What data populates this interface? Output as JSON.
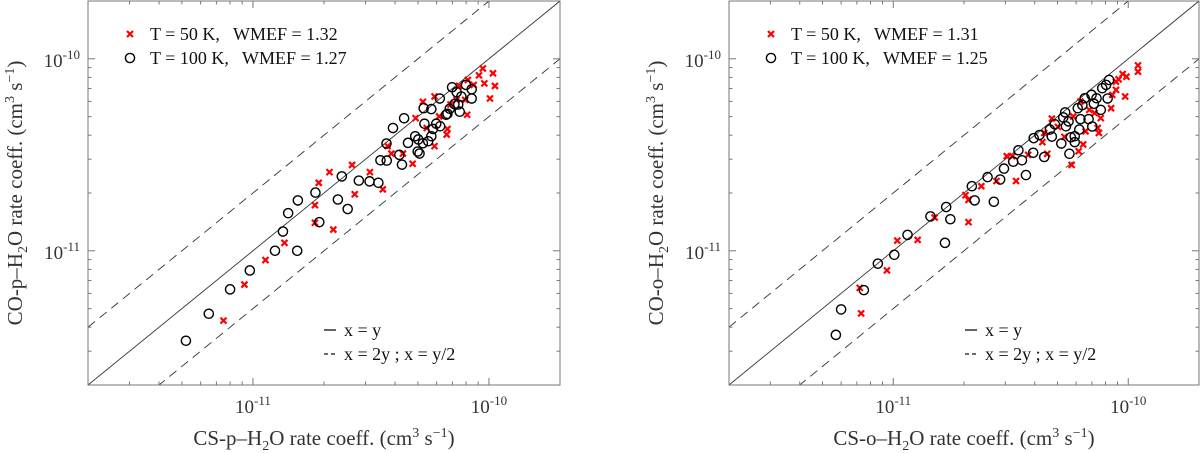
{
  "chart_data": [
    {
      "type": "scatter",
      "xscale": "log",
      "yscale": "log",
      "xlim": [
        2e-12,
        2e-10
      ],
      "ylim": [
        2e-12,
        2e-10
      ],
      "grid": false,
      "xlabel_parts": [
        "CS-p–H",
        "2",
        "O rate coeff.  (cm",
        "3",
        " s",
        "−1",
        ")"
      ],
      "ylabel_parts": [
        "CO-p–H",
        "2",
        "O rate coeff.  (cm",
        "3",
        " s",
        "−1",
        ")"
      ],
      "xticks": [
        {
          "value": 1e-11,
          "base": "10",
          "exp": "-11"
        },
        {
          "value": 1e-10,
          "base": "10",
          "exp": "-10"
        }
      ],
      "yticks": [
        {
          "value": 1e-11,
          "base": "10",
          "exp": "-11"
        },
        {
          "value": 1e-10,
          "base": "10",
          "exp": "-10"
        }
      ],
      "legend_position": "top-left",
      "series": [
        {
          "name": "T = 50 K,   WMEF = 1.32",
          "marker": "x",
          "color": "#ff0000",
          "points": [
            [
              7.5e-12,
              4.33e-12
            ],
            [
              9.2e-12,
              6.67e-12
            ],
            [
              1.13e-11,
              8.95e-12
            ],
            [
              1.36e-11,
              1.1e-11
            ],
            [
              1.83e-11,
              1.73e-11
            ],
            [
              1.83e-11,
              1.4e-11
            ],
            [
              1.9e-11,
              2.26e-11
            ],
            [
              2.11e-11,
              2.57e-11
            ],
            [
              2.19e-11,
              1.29e-11
            ],
            [
              2.63e-11,
              2.8e-11
            ],
            [
              2.7e-11,
              1.97e-11
            ],
            [
              3.13e-11,
              2.57e-11
            ],
            [
              3.55e-11,
              2.09e-11
            ],
            [
              3.72e-11,
              3.51e-11
            ],
            [
              3.86e-11,
              3.21e-11
            ],
            [
              4.32e-11,
              3.21e-11
            ],
            [
              4.75e-11,
              2.84e-11
            ],
            [
              4.89e-11,
              4.91e-11
            ],
            [
              5.25e-11,
              5.97e-11
            ],
            [
              5.45e-11,
              4.36e-11
            ],
            [
              5.88e-11,
              3.51e-11
            ],
            [
              5.88e-11,
              6.36e-11
            ],
            [
              6.15e-11,
              5.01e-11
            ],
            [
              6.62e-11,
              4.03e-11
            ],
            [
              6.67e-11,
              4.31e-11
            ],
            [
              6.87e-11,
              5.78e-11
            ],
            [
              7.28e-11,
              6.11e-11
            ],
            [
              7.47e-11,
              7.22e-11
            ],
            [
              7.93e-11,
              6.11e-11
            ],
            [
              8.08e-11,
              5.11e-11
            ],
            [
              8.14e-11,
              7.76e-11
            ],
            [
              8.61e-11,
              7.31e-11
            ],
            [
              9.07e-11,
              8.2e-11
            ],
            [
              9.42e-11,
              8.91e-11
            ],
            [
              9.56e-11,
              7.45e-11
            ],
            [
              1.01e-10,
              6.21e-11
            ],
            [
              1.04e-10,
              8.4e-11
            ],
            [
              1.06e-10,
              7.22e-11
            ]
          ]
        },
        {
          "name": "T = 100 K,   WMEF = 1.27",
          "marker": "o",
          "color": "#000000",
          "points": [
            [
              5.2e-12,
              3.4e-12
            ],
            [
              6.5e-12,
              4.7e-12
            ],
            [
              8e-12,
              6.3e-12
            ],
            [
              9.7e-12,
              7.9e-12
            ],
            [
              1.24e-11,
              1e-11
            ],
            [
              1.34e-11,
              1.26e-11
            ],
            [
              1.41e-11,
              1.57e-11
            ],
            [
              1.54e-11,
              1e-11
            ],
            [
              1.55e-11,
              1.83e-11
            ],
            [
              1.84e-11,
              2.01e-11
            ],
            [
              1.91e-11,
              1.41e-11
            ],
            [
              2.29e-11,
              1.85e-11
            ],
            [
              2.38e-11,
              2.44e-11
            ],
            [
              2.52e-11,
              1.65e-11
            ],
            [
              2.81e-11,
              2.32e-11
            ],
            [
              3.12e-11,
              2.3e-11
            ],
            [
              3.4e-11,
              2.26e-11
            ],
            [
              3.47e-11,
              2.96e-11
            ],
            [
              3.69e-11,
              2.95e-11
            ],
            [
              3.68e-11,
              3.62e-11
            ],
            [
              3.92e-11,
              4.36e-11
            ],
            [
              4.17e-11,
              3.16e-11
            ],
            [
              4.28e-11,
              2.81e-11
            ],
            [
              4.37e-11,
              4.9e-11
            ],
            [
              4.54e-11,
              3.65e-11
            ],
            [
              4.87e-11,
              3.95e-11
            ],
            [
              4.99e-11,
              3.29e-11
            ],
            [
              5.08e-11,
              3.21e-11
            ],
            [
              5.02e-11,
              3.8e-11
            ],
            [
              5.25e-11,
              3.63e-11
            ],
            [
              5.29e-11,
              5.53e-11
            ],
            [
              5.33e-11,
              4.59e-11
            ],
            [
              5.53e-11,
              3.72e-11
            ],
            [
              5.7e-11,
              5.47e-11
            ],
            [
              5.7e-11,
              3.95e-11
            ],
            [
              5.79e-11,
              4.31e-11
            ],
            [
              5.98e-11,
              4.59e-11
            ],
            [
              6.19e-11,
              6.21e-11
            ],
            [
              6.21e-11,
              4.45e-11
            ],
            [
              6.58e-11,
              5.11e-11
            ],
            [
              6.67e-11,
              5.17e-11
            ],
            [
              6.82e-11,
              5.49e-11
            ],
            [
              6.98e-11,
              7.11e-11
            ],
            [
              7.14e-11,
              5.81e-11
            ],
            [
              7.3e-11,
              6.7e-11
            ],
            [
              7.41e-11,
              5.78e-11
            ],
            [
              7.52e-11,
              5.3e-11
            ],
            [
              7.64e-11,
              6.36e-11
            ],
            [
              7.99e-11,
              7.31e-11
            ],
            [
              8.45e-11,
              6.94e-11
            ],
            [
              8.45e-11,
              6.21e-11
            ]
          ]
        }
      ],
      "reference_lines": [
        {
          "label": "x = y",
          "style": "solid",
          "ratio": 1
        },
        {
          "label": "x = 2y ; x = y/2",
          "style": "dashed",
          "ratios": [
            2,
            0.5
          ]
        }
      ]
    },
    {
      "type": "scatter",
      "xscale": "log",
      "yscale": "log",
      "xlim": [
        2e-12,
        2e-10
      ],
      "ylim": [
        2e-12,
        2e-10
      ],
      "grid": false,
      "xlabel_parts": [
        "CS-o–H",
        "2",
        "O rate coeff.  (cm",
        "3",
        " s",
        "−1",
        ")"
      ],
      "ylabel_parts": [
        "CO-o–H",
        "2",
        "O rate coeff.  (cm",
        "3",
        " s",
        "−1",
        ")"
      ],
      "xticks": [
        {
          "value": 1e-11,
          "base": "10",
          "exp": "-11"
        },
        {
          "value": 1e-10,
          "base": "10",
          "exp": "-10"
        }
      ],
      "yticks": [
        {
          "value": 1e-11,
          "base": "10",
          "exp": "-11"
        },
        {
          "value": 1e-10,
          "base": "10",
          "exp": "-10"
        }
      ],
      "legend_position": "top-left",
      "series": [
        {
          "name": "T = 50 K,   WMEF = 1.31",
          "marker": "x",
          "color": "#ff0000",
          "points": [
            [
              7.2e-12,
              6.41e-12
            ],
            [
              7.3e-12,
              4.72e-12
            ],
            [
              9.4e-12,
              7.91e-12
            ],
            [
              1.04e-11,
              1.13e-11
            ],
            [
              1.27e-11,
              1.14e-11
            ],
            [
              1.5e-11,
              1.49e-11
            ],
            [
              2.03e-11,
              1.95e-11
            ],
            [
              2.09e-11,
              1.84e-11
            ],
            [
              2.09e-11,
              1.41e-11
            ],
            [
              2.37e-11,
              2.17e-11
            ],
            [
              2.75e-11,
              2.31e-11
            ],
            [
              3.04e-11,
              3.11e-11
            ],
            [
              3.21e-11,
              3.11e-11
            ],
            [
              3.33e-11,
              2.31e-11
            ],
            [
              3.75e-11,
              3.16e-11
            ],
            [
              4.31e-11,
              3.68e-11
            ],
            [
              4.39e-11,
              4.11e-11
            ],
            [
              4.52e-11,
              3.2e-11
            ],
            [
              4.73e-11,
              4.88e-11
            ],
            [
              5.02e-11,
              4.42e-11
            ],
            [
              5.35e-11,
              3.92e-11
            ],
            [
              5.74e-11,
              2.8e-11
            ],
            [
              5.83e-11,
              5.01e-11
            ],
            [
              6.15e-11,
              3.3e-11
            ],
            [
              6.26e-11,
              5.99e-11
            ],
            [
              6.43e-11,
              3.58e-11
            ],
            [
              6.58e-11,
              4.19e-11
            ],
            [
              6.83e-11,
              5.42e-11
            ],
            [
              7.19e-11,
              5.22e-11
            ],
            [
              7.41e-11,
              4.36e-11
            ],
            [
              7.5e-11,
              4.11e-11
            ],
            [
              7.64e-11,
              4.91e-11
            ],
            [
              8.45e-11,
              5.53e-11
            ],
            [
              8.55e-11,
              6.49e-11
            ],
            [
              8.87e-11,
              6.89e-11
            ],
            [
              8.87e-11,
              7.6e-11
            ],
            [
              9.1e-11,
              7.82e-11
            ],
            [
              9.46e-11,
              8.33e-11
            ],
            [
              9.7e-11,
              6.36e-11
            ],
            [
              9.82e-11,
              8.07e-11
            ],
            [
              1.1e-10,
              8.57e-11
            ],
            [
              1.1e-10,
              9.24e-11
            ]
          ]
        },
        {
          "name": "T = 100 K,   WMEF = 1.25",
          "marker": "o",
          "color": "#000000",
          "points": [
            [
              5.7e-12,
              3.65e-12
            ],
            [
              6e-12,
              4.95e-12
            ],
            [
              7.5e-12,
              6.24e-12
            ],
            [
              8.6e-12,
              8.57e-12
            ],
            [
              1.01e-11,
              9.53e-12
            ],
            [
              1.15e-11,
              1.21e-11
            ],
            [
              1.44e-11,
              1.51e-11
            ],
            [
              1.68e-11,
              1.69e-11
            ],
            [
              1.66e-11,
              1.1e-11
            ],
            [
              1.75e-11,
              1.46e-11
            ],
            [
              2.16e-11,
              2.17e-11
            ],
            [
              2.22e-11,
              1.83e-11
            ],
            [
              2.52e-11,
              2.42e-11
            ],
            [
              2.68e-11,
              1.8e-11
            ],
            [
              2.85e-11,
              2.35e-11
            ],
            [
              2.96e-11,
              2.68e-11
            ],
            [
              3.24e-11,
              2.91e-11
            ],
            [
              3.41e-11,
              3.34e-11
            ],
            [
              3.53e-11,
              2.96e-11
            ],
            [
              3.67e-11,
              2.48e-11
            ],
            [
              3.94e-11,
              3.24e-11
            ],
            [
              3.96e-11,
              3.86e-11
            ],
            [
              4.19e-11,
              4.01e-11
            ],
            [
              4.39e-11,
              3.08e-11
            ],
            [
              4.64e-11,
              4.28e-11
            ],
            [
              4.73e-11,
              3.93e-11
            ],
            [
              4.87e-11,
              4.56e-11
            ],
            [
              5.19e-11,
              3.62e-11
            ],
            [
              5.29e-11,
              4.95e-11
            ],
            [
              5.39e-11,
              5.26e-11
            ],
            [
              5.43e-11,
              4.45e-11
            ],
            [
              5.57e-11,
              4.72e-11
            ],
            [
              5.62e-11,
              3.2e-11
            ],
            [
              5.7e-11,
              3.9e-11
            ],
            [
              5.92e-11,
              3.95e-11
            ],
            [
              5.92e-11,
              3.68e-11
            ],
            [
              6.1e-11,
              5.53e-11
            ],
            [
              6.19e-11,
              4.28e-11
            ],
            [
              6.26e-11,
              4.85e-11
            ],
            [
              6.38e-11,
              5.74e-11
            ],
            [
              6.53e-11,
              6.23e-11
            ],
            [
              6.78e-11,
              4.85e-11
            ],
            [
              6.98e-11,
              6.49e-11
            ],
            [
              7.03e-11,
              4.44e-11
            ],
            [
              7.14e-11,
              5.83e-11
            ],
            [
              7.33e-11,
              6.23e-11
            ],
            [
              7.64e-11,
              5.42e-11
            ],
            [
              7.75e-11,
              7.03e-11
            ],
            [
              8.05e-11,
              7.31e-11
            ],
            [
              8.17e-11,
              6.21e-11
            ],
            [
              8.29e-11,
              7.76e-11
            ]
          ]
        }
      ],
      "reference_lines": [
        {
          "label": "x = y",
          "style": "solid",
          "ratio": 1
        },
        {
          "label": "x = 2y ; x = y/2",
          "style": "dashed",
          "ratios": [
            2,
            0.5
          ]
        }
      ]
    }
  ]
}
